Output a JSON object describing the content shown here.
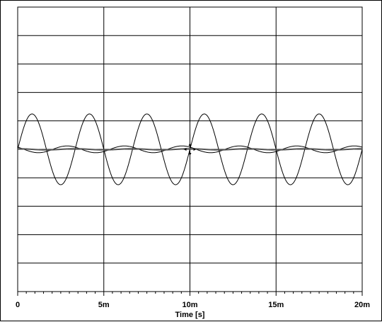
{
  "chart_data": {
    "type": "line",
    "title": "",
    "xlabel": "Time [s]",
    "ylabel": "",
    "x_unit": "s",
    "xlim": [
      0,
      0.02
    ],
    "x_ticks": [
      {
        "value": 0,
        "label": "0"
      },
      {
        "value": 0.005,
        "label": "5m"
      },
      {
        "value": 0.01,
        "label": "10m"
      },
      {
        "value": 0.015,
        "label": "15m"
      },
      {
        "value": 0.02,
        "label": "20m"
      }
    ],
    "y_gridlines": 10,
    "grid": true,
    "series": [
      {
        "amplitude": 1.25,
        "period": 0.0033333,
        "phase_deg": 90,
        "color": "#000000"
      },
      {
        "amplitude": 0.12,
        "period": 0.0033333,
        "phase_deg": -50,
        "color": "#000000"
      },
      {
        "amplitude": 0.02,
        "period": 0.0033333,
        "phase_deg": 0,
        "color": "#555555"
      }
    ],
    "marker": {
      "x": 0.01,
      "y": 0
    }
  }
}
